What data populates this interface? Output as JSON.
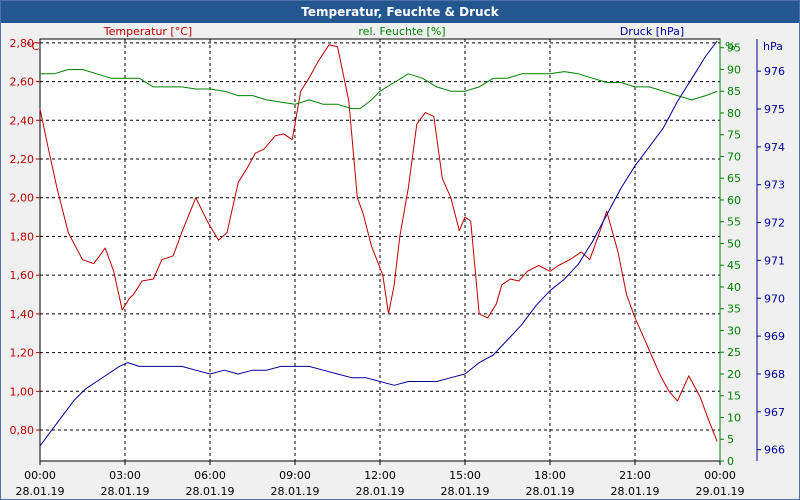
{
  "window": {
    "title": "Temperatur, Feuchte & Druck"
  },
  "colors": {
    "temperature": "#c00000",
    "humidity": "#008000",
    "pressure": "#000099",
    "titlebar": "#22578f",
    "grid": "#000000",
    "plot_bg": "#ffffff"
  },
  "chart_data": {
    "type": "line",
    "title": "Temperatur, Feuchte & Druck",
    "grid": true,
    "x_ticks": [
      {
        "time": "00:00",
        "date": "28.01.19"
      },
      {
        "time": "03:00",
        "date": "28.01.19"
      },
      {
        "time": "06:00",
        "date": "28.01.19"
      },
      {
        "time": "09:00",
        "date": "28.01.19"
      },
      {
        "time": "12:00",
        "date": "28.01.19"
      },
      {
        "time": "15:00",
        "date": "28.01.19"
      },
      {
        "time": "18:00",
        "date": "28.01.19"
      },
      {
        "time": "21:00",
        "date": "28.01.19"
      },
      {
        "time": "00:00",
        "date": "29.01.19"
      }
    ],
    "xlim_hours": [
      0,
      24
    ],
    "axes": {
      "temperature": {
        "label": "Temperatur [°C]",
        "unit": "°C",
        "side": "left",
        "ylim": [
          0.64,
          2.82
        ],
        "ticks": [
          "0,80",
          "1,00",
          "1,20",
          "1,40",
          "1,60",
          "1,80",
          "2,00",
          "2,20",
          "2,40",
          "2,60",
          "2,80"
        ],
        "tick_values": [
          0.8,
          1.0,
          1.2,
          1.4,
          1.6,
          1.8,
          2.0,
          2.2,
          2.4,
          2.6,
          2.8
        ]
      },
      "humidity": {
        "label": "rel. Feuchte [%]",
        "unit": "%",
        "side": "right",
        "ylim": [
          0,
          97
        ],
        "ticks": [
          "0",
          "5",
          "10",
          "15",
          "20",
          "25",
          "30",
          "35",
          "40",
          "45",
          "50",
          "55",
          "60",
          "65",
          "70",
          "75",
          "80",
          "85",
          "90",
          "95"
        ],
        "tick_values": [
          0,
          5,
          10,
          15,
          20,
          25,
          30,
          35,
          40,
          45,
          50,
          55,
          60,
          65,
          70,
          75,
          80,
          85,
          90,
          95
        ]
      },
      "pressure": {
        "label": "Druck [hPa]",
        "unit": "hPa",
        "side": "right-outer",
        "ylim": [
          965.7,
          976.85
        ],
        "ticks": [
          "966",
          "967",
          "968",
          "969",
          "970",
          "971",
          "972",
          "973",
          "974",
          "975",
          "976"
        ],
        "tick_values": [
          966,
          967,
          968,
          969,
          970,
          971,
          972,
          973,
          974,
          975,
          976
        ]
      }
    },
    "series": [
      {
        "name": "Temperatur [°C]",
        "axis": "temperature",
        "x": [
          0,
          0.3,
          0.6,
          1,
          1.5,
          1.9,
          2.3,
          2.6,
          2.9,
          3.15,
          3.3,
          3.6,
          4,
          4.3,
          4.7,
          5,
          5.5,
          5.9,
          6.3,
          6.6,
          7,
          7.3,
          7.6,
          7.9,
          8.3,
          8.6,
          8.9,
          9.2,
          9.5,
          9.8,
          10.2,
          10.5,
          10.9,
          11.2,
          11.4,
          11.7,
          12.1,
          12.3,
          12.5,
          12.7,
          13,
          13.3,
          13.6,
          13.9,
          14.2,
          14.5,
          14.8,
          15,
          15.2,
          15.5,
          15.8,
          16.1,
          16.3,
          16.6,
          16.9,
          17.2,
          17.6,
          18,
          18.3,
          18.7,
          19.1,
          19.4,
          19.7,
          20,
          20.4,
          20.7,
          21,
          21.3,
          21.6,
          21.9,
          22.2,
          22.5,
          22.9,
          23.3,
          23.6,
          23.9
        ],
        "values": [
          2.46,
          2.25,
          2.05,
          1.82,
          1.68,
          1.66,
          1.74,
          1.62,
          1.42,
          1.48,
          1.5,
          1.57,
          1.58,
          1.68,
          1.7,
          1.82,
          2.0,
          1.88,
          1.78,
          1.82,
          2.08,
          2.15,
          2.23,
          2.25,
          2.32,
          2.33,
          2.3,
          2.55,
          2.62,
          2.7,
          2.79,
          2.78,
          2.5,
          2.0,
          1.92,
          1.75,
          1.6,
          1.4,
          1.55,
          1.8,
          2.05,
          2.38,
          2.44,
          2.42,
          2.1,
          2.0,
          1.83,
          1.9,
          1.88,
          1.4,
          1.38,
          1.45,
          1.55,
          1.58,
          1.57,
          1.62,
          1.65,
          1.62,
          1.65,
          1.68,
          1.72,
          1.68,
          1.8,
          1.93,
          1.72,
          1.5,
          1.38,
          1.28,
          1.18,
          1.08,
          1.0,
          0.95,
          1.08,
          0.97,
          0.85,
          0.74
        ]
      },
      {
        "name": "rel. Feuchte [%]",
        "axis": "humidity",
        "x": [
          0,
          0.5,
          1,
          1.5,
          2,
          2.5,
          3,
          3.5,
          4,
          4.5,
          5,
          5.5,
          6,
          6.5,
          7,
          7.5,
          8,
          8.5,
          9,
          9.5,
          10,
          10.5,
          11,
          11.3,
          11.7,
          12,
          12.5,
          13,
          13.5,
          14,
          14.5,
          15,
          15.5,
          16,
          16.5,
          17,
          17.5,
          18,
          18.5,
          19,
          19.5,
          20,
          20.5,
          21,
          21.5,
          22,
          22.5,
          23,
          23.5,
          23.9
        ],
        "values": [
          89,
          89,
          90,
          90,
          89,
          88,
          88,
          88,
          86,
          86,
          86,
          85.5,
          85.5,
          85,
          84,
          84,
          83,
          82.5,
          82,
          83,
          82,
          82,
          81,
          81,
          83,
          85,
          87,
          89,
          88,
          86,
          85,
          85,
          86,
          88,
          88,
          89,
          89,
          89,
          89.5,
          89,
          88,
          87,
          87,
          86,
          86,
          85,
          84,
          83,
          84,
          85
        ]
      },
      {
        "name": "Druck [hPa]",
        "axis": "pressure",
        "x": [
          0,
          0.4,
          0.8,
          1.2,
          1.6,
          2,
          2.4,
          2.8,
          3.1,
          3.5,
          4,
          4.5,
          5,
          5.5,
          6,
          6.5,
          7,
          7.5,
          8,
          8.5,
          9,
          9.5,
          10,
          10.5,
          11,
          11.5,
          12,
          12.5,
          13,
          13.5,
          14,
          14.5,
          15,
          15.5,
          16,
          16.5,
          17,
          17.5,
          18,
          18.5,
          19,
          19.5,
          20,
          20.5,
          21,
          21.5,
          22,
          22.5,
          23,
          23.5,
          23.9
        ],
        "values": [
          966.1,
          966.5,
          966.9,
          967.3,
          967.6,
          967.8,
          968.0,
          968.2,
          968.3,
          968.2,
          968.2,
          968.2,
          968.2,
          968.1,
          968.0,
          968.1,
          968.0,
          968.1,
          968.1,
          968.2,
          968.2,
          968.2,
          968.1,
          968.0,
          967.9,
          967.9,
          967.8,
          967.7,
          967.8,
          967.8,
          967.8,
          967.9,
          968.0,
          968.3,
          968.5,
          968.9,
          969.3,
          969.8,
          970.2,
          970.5,
          970.9,
          971.5,
          972.2,
          972.9,
          973.5,
          974.0,
          974.5,
          975.2,
          975.8,
          976.4,
          976.8
        ]
      }
    ]
  }
}
